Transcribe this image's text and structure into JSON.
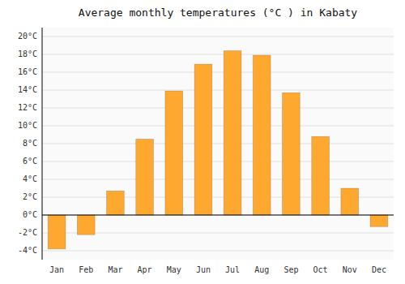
{
  "chart_data": {
    "type": "bar",
    "title": "Average monthly temperatures (°C ) in Kabaty",
    "categories": [
      "Jan",
      "Feb",
      "Mar",
      "Apr",
      "May",
      "Jun",
      "Jul",
      "Aug",
      "Sep",
      "Oct",
      "Nov",
      "Dec"
    ],
    "values": [
      -3.8,
      -2.2,
      2.7,
      8.5,
      13.9,
      16.9,
      18.4,
      17.9,
      13.7,
      8.8,
      3.0,
      -1.3
    ],
    "color": "#FFA830",
    "ylim": [
      -5,
      21
    ],
    "yticks": [
      {
        "value": -4,
        "label": "-4°C"
      },
      {
        "value": -2,
        "label": "-2°C"
      },
      {
        "value": 0,
        "label": "0°C"
      },
      {
        "value": 2,
        "label": "2°C"
      },
      {
        "value": 4,
        "label": "4°C"
      },
      {
        "value": 6,
        "label": "6°C"
      },
      {
        "value": 8,
        "label": "8°C"
      },
      {
        "value": 10,
        "label": "10°C"
      },
      {
        "value": 12,
        "label": "12°C"
      },
      {
        "value": 14,
        "label": "14°C"
      },
      {
        "value": 16,
        "label": "16°C"
      },
      {
        "value": 18,
        "label": "18°C"
      },
      {
        "value": 20,
        "label": "20°C"
      }
    ],
    "grid": true
  }
}
